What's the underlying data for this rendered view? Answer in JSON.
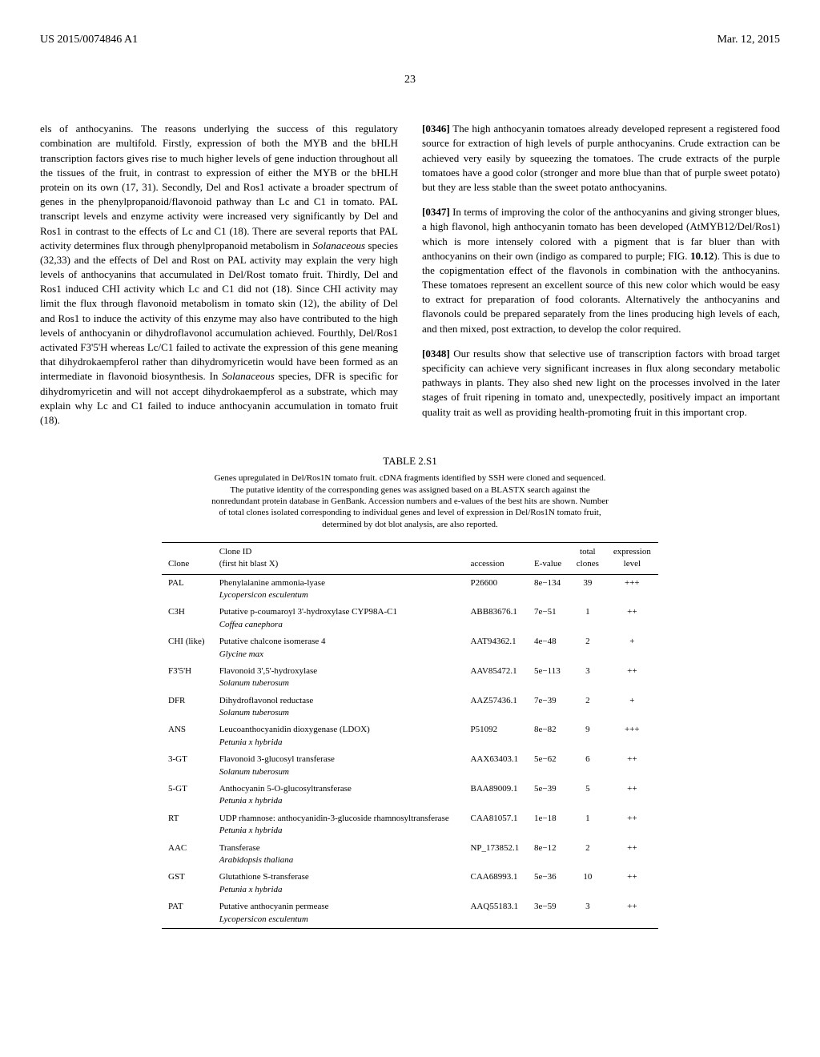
{
  "header": {
    "patent_number": "US 2015/0074846 A1",
    "date": "Mar. 12, 2015",
    "page": "23"
  },
  "col1": {
    "para1": "els of anthocyanins. The reasons underlying the success of this regulatory combination are multifold. Firstly, expression of both the MYB and the bHLH transcription factors gives rise to much higher levels of gene induction throughout all the tissues of the fruit, in contrast to expression of either the MYB or the bHLH protein on its own (17, 31). Secondly, Del and Ros1 activate a broader spectrum of genes in the phenylpropanoid/flavonoid pathway than Lc and C1 in tomato. PAL transcript levels and enzyme activity were increased very significantly by Del and Ros1 in contrast to the effects of Lc and C1 (18). There are several reports that PAL activity determines flux through phenylpropanoid metabolism in ",
    "para1_italic": "Solanaceous",
    "para1_cont": " species (32,33) and the effects of Del and Rost on PAL activity may explain the very high levels of anthocyanins that accumulated in Del/Rost tomato fruit. Thirdly, Del and Ros1 induced CHI activity which Lc and C1 did not (18). Since CHI activity may limit the flux through flavonoid metabolism in tomato skin (12), the ability of Del and Ros1 to induce the activity of this enzyme may also have contributed to the high levels of anthocyanin or dihydroflavonol accumulation achieved. Fourthly, Del/Ros1 activated F3'5'H whereas Lc/C1 failed to activate the expression of this gene meaning that dihydrokaempferol rather than dihydromyricetin would have been formed as an intermediate in flavonoid biosynthesis. In ",
    "para1_italic2": "Solanaceous",
    "para1_end": " species, DFR is specific for dihydromyricetin and will not accept dihydrokaempferol as a substrate, which may explain why Lc and C1 failed to induce anthocyanin accumulation in tomato fruit (18)."
  },
  "col2": {
    "num1": "[0346]",
    "para1": " The high anthocyanin tomatoes already developed represent a registered food source for extraction of high levels of purple anthocyanins. Crude extraction can be achieved very easily by squeezing the tomatoes. The crude extracts of the purple tomatoes have a good color (stronger and more blue than that of purple sweet potato) but they are less stable than the sweet potato anthocyanins.",
    "num2": "[0347]",
    "para2": " In terms of improving the color of the anthocyanins and giving stronger blues, a high flavonol, high anthocyanin tomato has been developed (AtMYB12/Del/Ros1) which is more intensely colored with a pigment that is far bluer than with anthocyanins on their own (indigo as compared to purple; FIG. ",
    "para2_bold": "10.12",
    "para2_cont": "). This is due to the copigmentation effect of the flavonols in combination with the anthocyanins. These tomatoes represent an excellent source of this new color which would be easy to extract for preparation of food colorants. Alternatively the anthocyanins and flavonols could be prepared separately from the lines producing high levels of each, and then mixed, post extraction, to develop the color required.",
    "num3": "[0348]",
    "para3": " Our results show that selective use of transcription factors with broad target specificity can achieve very significant increases in flux along secondary metabolic pathways in plants. They also shed new light on the processes involved in the later stages of fruit ripening in tomato and, unexpectedly, positively impact an important quality trait as well as providing health-promoting fruit in this important crop."
  },
  "table": {
    "title": "TABLE 2.S1",
    "caption": "Genes upregulated in Del/Ros1N tomato fruit. cDNA fragments identified by SSH were cloned and sequenced. The putative identity of the corresponding genes was assigned based on a BLASTX search against the nonredundant protein database in GenBank. Accession numbers and e-values of the best hits are shown. Number of total clones isolated corresponding to individual genes and level of expression in Del/Ros1N tomato fruit, determined by dot blot analysis, are also reported.",
    "columns": [
      "Clone",
      "Clone ID\n(first hit blast X)",
      "accession",
      "E-value",
      "total clones",
      "expression level"
    ],
    "rows": [
      {
        "clone": "PAL",
        "id": "Phenylalanine ammonia-lyase",
        "org": "Lycopersicon esculentum",
        "acc": "P26600",
        "eval": "8e−134",
        "total": "39",
        "expr": "+++"
      },
      {
        "clone": "C3H",
        "id": "Putative p-coumaroyl 3'-hydroxylase CYP98A-C1",
        "org": "Coffea canephora",
        "acc": "ABB83676.1",
        "eval": "7e−51",
        "total": "1",
        "expr": "++"
      },
      {
        "clone": "CHI (like)",
        "id": "Putative chalcone isomerase 4",
        "org": "Glycine max",
        "acc": "AAT94362.1",
        "eval": "4e−48",
        "total": "2",
        "expr": "+"
      },
      {
        "clone": "F3'5'H",
        "id": "Flavonoid 3',5'-hydroxylase",
        "org": "Solanum tuberosum",
        "acc": "AAV85472.1",
        "eval": "5e−113",
        "total": "3",
        "expr": "++"
      },
      {
        "clone": "DFR",
        "id": "Dihydroflavonol reductase",
        "org": "Solanum tuberosum",
        "acc": "AAZ57436.1",
        "eval": "7e−39",
        "total": "2",
        "expr": "+"
      },
      {
        "clone": "ANS",
        "id": "Leucoanthocyanidin dioxygenase (LDOX)",
        "org": "Petunia x hybrida",
        "acc": "P51092",
        "eval": "8e−82",
        "total": "9",
        "expr": "+++"
      },
      {
        "clone": "3-GT",
        "id": "Flavonoid 3-glucosyl transferase",
        "org": "Solanum tuberosum",
        "acc": "AAX63403.1",
        "eval": "5e−62",
        "total": "6",
        "expr": "++"
      },
      {
        "clone": "5-GT",
        "id": "Anthocyanin 5-O-glucosyltransferase",
        "org": "Petunia x hybrida",
        "acc": "BAA89009.1",
        "eval": "5e−39",
        "total": "5",
        "expr": "++"
      },
      {
        "clone": "RT",
        "id": "UDP rhamnose: anthocyanidin-3-glucoside rhamnosyltransferase",
        "org": "Petunia x hybrida",
        "acc": "CAA81057.1",
        "eval": "1e−18",
        "total": "1",
        "expr": "++"
      },
      {
        "clone": "AAC",
        "id": "Transferase",
        "org": "Arabidopsis thaliana",
        "acc": "NP_173852.1",
        "eval": "8e−12",
        "total": "2",
        "expr": "++"
      },
      {
        "clone": "GST",
        "id": "Glutathione S-transferase",
        "org": "Petunia x hybrida",
        "acc": "CAA68993.1",
        "eval": "5e−36",
        "total": "10",
        "expr": "++"
      },
      {
        "clone": "PAT",
        "id": "Putative anthocyanin permease",
        "org": "Lycopersicon esculentum",
        "acc": "AAQ55183.1",
        "eval": "3e−59",
        "total": "3",
        "expr": "++"
      }
    ]
  }
}
